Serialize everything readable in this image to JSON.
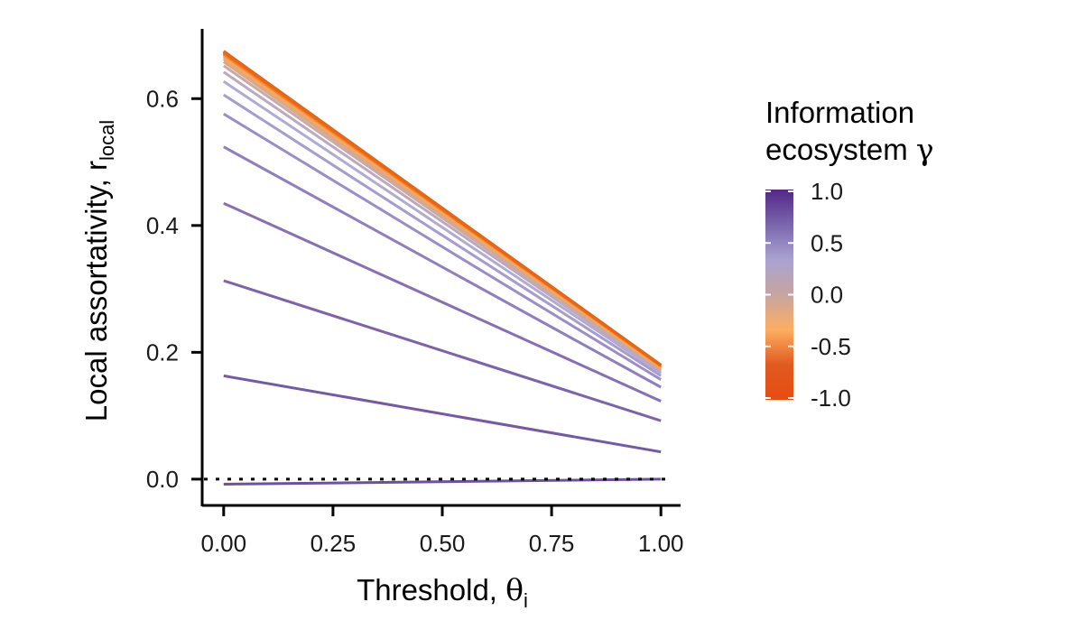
{
  "chart_data": {
    "type": "line",
    "x": [
      0,
      1
    ],
    "xlim": [
      -0.045,
      1.045
    ],
    "ylim": [
      -0.04,
      0.71
    ],
    "x_ticks": [
      "0.00",
      "0.25",
      "0.50",
      "0.75",
      "1.00"
    ],
    "y_ticks": [
      "0.0",
      "0.2",
      "0.4",
      "0.6"
    ],
    "xlabel": {
      "main": "Threshold, ",
      "symbol": "θ",
      "subscript": "i"
    },
    "ylabel": {
      "main": "Local assortativity, r",
      "subscript": "local"
    },
    "reference_line": {
      "y": 0,
      "style": "dotted",
      "color": "#000000"
    },
    "grid": false,
    "legend": {
      "placement": "right",
      "title_line1": "Information",
      "title_line2": "ecosystem ",
      "title_symbol": "γ",
      "scale": "continuous",
      "range": [
        -1,
        1
      ],
      "ticks": [
        "1.0",
        "0.5",
        "0.0",
        "-0.5",
        "-1.0"
      ],
      "gradient_stops": [
        "#542788",
        "#7a66ad",
        "#a9a3d0",
        "#c6a5a0",
        "#fdae61",
        "#e05a20",
        "#e64d12"
      ]
    },
    "series": [
      {
        "gamma": 1.0,
        "values": [
          -0.008,
          0.0
        ],
        "color": "#6d51a0"
      },
      {
        "gamma": 0.9,
        "values": [
          0.163,
          0.043
        ],
        "color": "#7558a6"
      },
      {
        "gamma": 0.8,
        "values": [
          0.313,
          0.092
        ],
        "color": "#7c63ac"
      },
      {
        "gamma": 0.7,
        "values": [
          0.435,
          0.123
        ],
        "color": "#8670b4"
      },
      {
        "gamma": 0.6,
        "values": [
          0.524,
          0.145
        ],
        "color": "#907fbd"
      },
      {
        "gamma": 0.5,
        "values": [
          0.576,
          0.157
        ],
        "color": "#9b8dc5"
      },
      {
        "gamma": 0.4,
        "values": [
          0.606,
          0.163
        ],
        "color": "#a69ccd"
      },
      {
        "gamma": 0.3,
        "values": [
          0.627,
          0.167
        ],
        "color": "#b0abd3"
      },
      {
        "gamma": 0.2,
        "values": [
          0.642,
          0.17
        ],
        "color": "#bba9c0"
      },
      {
        "gamma": 0.1,
        "values": [
          0.652,
          0.172
        ],
        "color": "#c8aaa6"
      },
      {
        "gamma": 0.0,
        "values": [
          0.658,
          0.174
        ],
        "color": "#d5a88f"
      },
      {
        "gamma": -0.1,
        "values": [
          0.662,
          0.175
        ],
        "color": "#e3a878"
      },
      {
        "gamma": -0.2,
        "values": [
          0.665,
          0.176
        ],
        "color": "#f0aa66"
      },
      {
        "gamma": -0.3,
        "values": [
          0.667,
          0.177
        ],
        "color": "#fba55a"
      },
      {
        "gamma": -0.4,
        "values": [
          0.669,
          0.178
        ],
        "color": "#f99648"
      },
      {
        "gamma": -0.5,
        "values": [
          0.67,
          0.178
        ],
        "color": "#f58a3a"
      },
      {
        "gamma": -0.6,
        "values": [
          0.671,
          0.179
        ],
        "color": "#f2802f"
      },
      {
        "gamma": -0.7,
        "values": [
          0.672,
          0.179
        ],
        "color": "#ef7724"
      },
      {
        "gamma": -0.8,
        "values": [
          0.673,
          0.179
        ],
        "color": "#ed701c"
      },
      {
        "gamma": -0.9,
        "values": [
          0.674,
          0.18
        ],
        "color": "#ea6a16"
      },
      {
        "gamma": -1.0,
        "values": [
          0.675,
          0.18
        ],
        "color": "#e86512"
      }
    ]
  }
}
